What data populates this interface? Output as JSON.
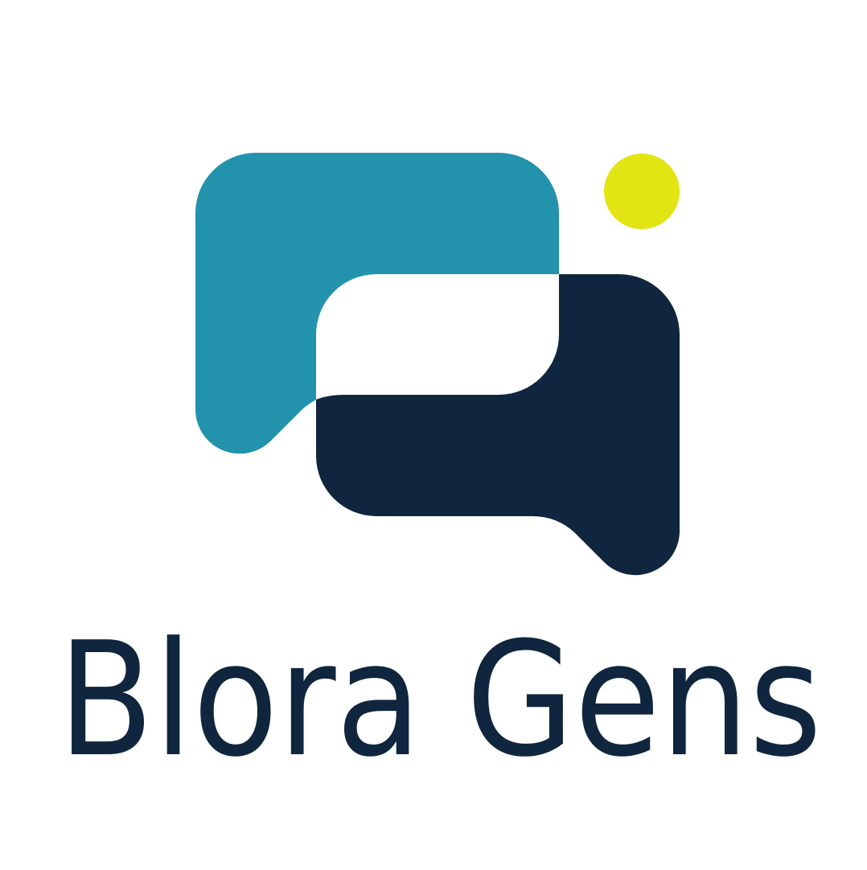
{
  "logo": {
    "brand_name": "Blora Gens",
    "colors": {
      "teal": "#2392AD",
      "navy": "#10263E",
      "yellow": "#E3E414",
      "background": "#FFFFFF"
    }
  }
}
